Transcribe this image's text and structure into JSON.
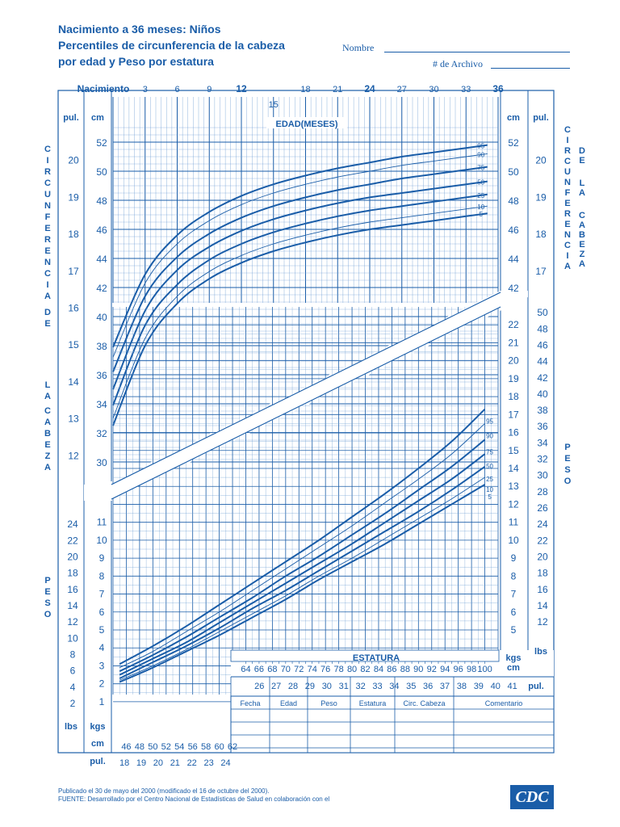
{
  "header": {
    "title_lines": [
      "Nacimiento a 36 meses: Niños",
      "Percentiles de circunferencia de la cabeza",
      "por edad y Peso por estatura"
    ],
    "name_label": "Nombre",
    "record_label": "# de Archivo"
  },
  "footer": {
    "line1": "Publicado el 30 de mayo del 2000 (modificado el 16 de octubre del 2000).",
    "line2": "FUENTE: Desarrollado por el Centro Nacional de Estadísticas de Salud en colaboración con el",
    "logo": "CDC"
  },
  "colors": {
    "ink": "#1a5da8",
    "grid": "#6f9fd4",
    "background": "#ffffff"
  },
  "chart_data": [
    {
      "type": "line",
      "title": "",
      "xlabel": "EDAD(MESES)",
      "ylabel": "CIRCUNFERENCIA DE LA CABEZA",
      "ylabel_right": "CIRCUNFERENCIA DE LA CABEZA",
      "x_start_label": "Nacimiento",
      "x_ticks": [
        3,
        6,
        9,
        12,
        15,
        18,
        21,
        24,
        27,
        30,
        33,
        36
      ],
      "xlim": [
        0,
        36
      ],
      "y_cm_ticks": [
        30,
        32,
        34,
        36,
        38,
        40,
        42,
        44,
        46,
        48,
        50,
        52
      ],
      "y_in_ticks": [
        12,
        13,
        14,
        15,
        16,
        17,
        18,
        19,
        20
      ],
      "ylim_cm": [
        29,
        54
      ],
      "unit_cm": "cm",
      "unit_in": "pul.",
      "x": [
        0,
        3,
        6,
        9,
        12,
        15,
        18,
        21,
        24,
        27,
        30,
        33,
        35
      ],
      "series": [
        {
          "name": "95",
          "values": [
            37.9,
            42.9,
            45.6,
            47.2,
            48.3,
            49.1,
            49.7,
            50.2,
            50.6,
            51.0,
            51.3,
            51.6,
            51.8
          ]
        },
        {
          "name": "90",
          "values": [
            37.2,
            42.3,
            45.0,
            46.6,
            47.7,
            48.5,
            49.1,
            49.6,
            50.0,
            50.4,
            50.7,
            51.0,
            51.2
          ]
        },
        {
          "name": "75",
          "values": [
            36.2,
            41.4,
            44.1,
            45.7,
            46.8,
            47.6,
            48.2,
            48.7,
            49.1,
            49.5,
            49.8,
            50.1,
            50.3
          ]
        },
        {
          "name": "50",
          "values": [
            35.0,
            40.4,
            43.2,
            44.8,
            45.9,
            46.7,
            47.3,
            47.8,
            48.2,
            48.5,
            48.8,
            49.1,
            49.3
          ]
        },
        {
          "name": "25",
          "values": [
            33.9,
            39.4,
            42.2,
            43.9,
            45.0,
            45.8,
            46.4,
            46.9,
            47.3,
            47.6,
            47.9,
            48.2,
            48.4
          ]
        },
        {
          "name": "10",
          "values": [
            33.0,
            38.5,
            41.4,
            43.1,
            44.2,
            45.0,
            45.6,
            46.1,
            46.5,
            46.8,
            47.1,
            47.4,
            47.6
          ]
        },
        {
          "name": "5",
          "values": [
            32.5,
            38.0,
            40.9,
            42.6,
            43.7,
            44.5,
            45.1,
            45.6,
            46.0,
            46.3,
            46.6,
            46.9,
            47.1
          ]
        }
      ]
    },
    {
      "type": "line",
      "title": "",
      "xlabel": "ESTATURA",
      "ylabel": "PESO",
      "ylabel_right": "PESO",
      "x_cm_ticks": [
        46,
        48,
        50,
        52,
        54,
        56,
        58,
        60,
        62,
        64,
        66,
        68,
        70,
        72,
        74,
        76,
        78,
        80,
        82,
        84,
        86,
        88,
        90,
        92,
        94,
        96,
        98,
        100
      ],
      "x_in_ticks": [
        18,
        19,
        20,
        21,
        22,
        23,
        24,
        26,
        27,
        28,
        29,
        30,
        31,
        32,
        33,
        34,
        35,
        36,
        37,
        38,
        39,
        40,
        41
      ],
      "xlim_cm": [
        44,
        102
      ],
      "y_kg_ticks": [
        1,
        2,
        3,
        4,
        5,
        6,
        7,
        8,
        9,
        10,
        11,
        12,
        13,
        14,
        15,
        16,
        17,
        18,
        19,
        20,
        21,
        22
      ],
      "y_lb_ticks": [
        2,
        4,
        6,
        8,
        10,
        12,
        14,
        16,
        18,
        20,
        22,
        24,
        26,
        28,
        30,
        32,
        34,
        36,
        38,
        40,
        42,
        44,
        46,
        48,
        50
      ],
      "unit_kg": "kgs",
      "unit_lb": "lbs",
      "unit_cm": "cm",
      "unit_in": "pul.",
      "x": [
        45,
        50,
        55,
        60,
        65,
        70,
        75,
        80,
        85,
        90,
        95,
        100
      ],
      "series": [
        {
          "name": "95",
          "values": [
            3.1,
            4.1,
            5.2,
            6.4,
            7.6,
            8.8,
            10.0,
            11.3,
            12.6,
            14.0,
            15.5,
            17.3
          ]
        },
        {
          "name": "90",
          "values": [
            2.9,
            3.8,
            4.9,
            6.0,
            7.2,
            8.4,
            9.6,
            10.8,
            12.1,
            13.4,
            14.8,
            16.5
          ]
        },
        {
          "name": "75",
          "values": [
            2.7,
            3.6,
            4.6,
            5.7,
            6.8,
            8.0,
            9.1,
            10.3,
            11.5,
            12.8,
            14.1,
            15.6
          ]
        },
        {
          "name": "50",
          "values": [
            2.5,
            3.4,
            4.3,
            5.4,
            6.5,
            7.6,
            8.7,
            9.8,
            11.0,
            12.2,
            13.4,
            14.8
          ]
        },
        {
          "name": "25",
          "values": [
            2.3,
            3.2,
            4.1,
            5.1,
            6.2,
            7.2,
            8.3,
            9.4,
            10.5,
            11.6,
            12.8,
            14.1
          ]
        },
        {
          "name": "10",
          "values": [
            2.2,
            3.0,
            3.9,
            4.9,
            5.9,
            6.9,
            8.0,
            9.0,
            10.1,
            11.2,
            12.3,
            13.5
          ]
        },
        {
          "name": "5",
          "values": [
            2.1,
            2.9,
            3.8,
            4.7,
            5.7,
            6.7,
            7.8,
            8.8,
            9.8,
            10.9,
            12.0,
            13.1
          ]
        }
      ]
    }
  ],
  "record_table": {
    "columns": [
      "Fecha",
      "Edad",
      "Peso",
      "Estatura",
      "Circ. Cabeza",
      "Comentario"
    ]
  }
}
